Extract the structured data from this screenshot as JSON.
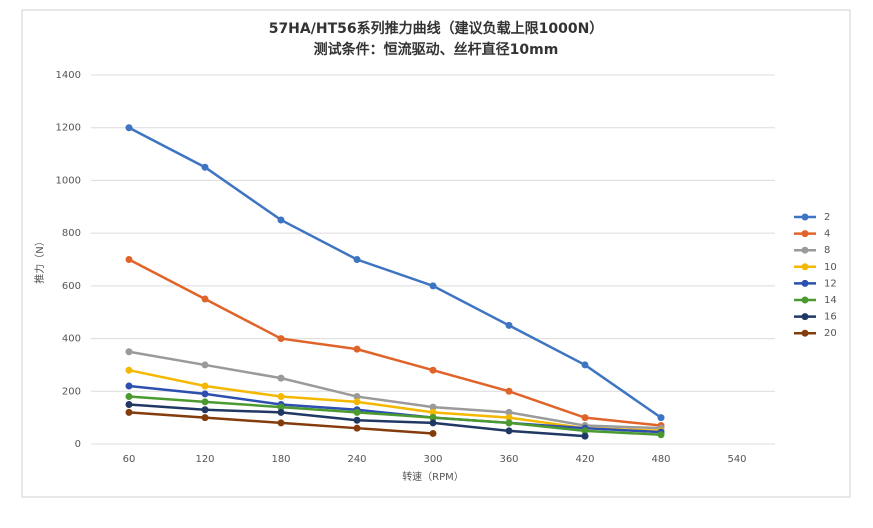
{
  "chart_data": {
    "type": "line",
    "title": "57HA/HT56系列推力曲线（建议负载上限1000N）",
    "subtitle": "测试条件：恒流驱动、丝杆直径10mm",
    "x_label": "转速（RPM）",
    "y_label": "推力（N）",
    "categories": [
      "60",
      "120",
      "180",
      "240",
      "300",
      "360",
      "420",
      "480",
      "540"
    ],
    "ylim": [
      0,
      1400
    ],
    "yticks": [
      0,
      200,
      400,
      600,
      800,
      1000,
      1200,
      1400
    ],
    "grid": true,
    "legend": "right",
    "series": [
      {
        "name": "2",
        "color": "#3e75c2",
        "values": [
          1200,
          1050,
          850,
          700,
          600,
          450,
          300,
          100,
          null
        ]
      },
      {
        "name": "4",
        "color": "#e0642a",
        "values": [
          700,
          550,
          400,
          360,
          280,
          200,
          100,
          70,
          null
        ]
      },
      {
        "name": "8",
        "color": "#9a9a9a",
        "values": [
          350,
          300,
          250,
          180,
          140,
          120,
          70,
          60,
          null
        ]
      },
      {
        "name": "10",
        "color": "#f5b800",
        "values": [
          280,
          220,
          180,
          160,
          120,
          100,
          60,
          50,
          null
        ]
      },
      {
        "name": "12",
        "color": "#2d4fb0",
        "values": [
          220,
          190,
          150,
          130,
          100,
          80,
          60,
          45,
          null
        ]
      },
      {
        "name": "14",
        "color": "#4a9a30",
        "values": [
          180,
          160,
          140,
          120,
          100,
          80,
          50,
          35,
          null
        ]
      },
      {
        "name": "16",
        "color": "#1f3864",
        "values": [
          150,
          130,
          120,
          90,
          80,
          50,
          30,
          null,
          null
        ]
      },
      {
        "name": "20",
        "color": "#843c0c",
        "values": [
          120,
          100,
          80,
          60,
          40,
          null,
          null,
          null,
          null
        ]
      }
    ]
  }
}
